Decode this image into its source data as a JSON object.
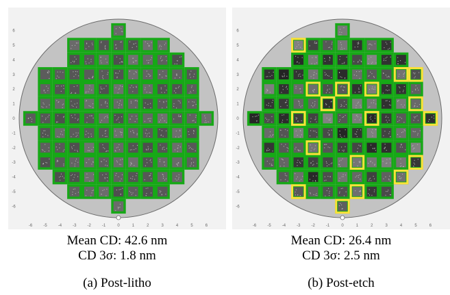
{
  "panels": [
    {
      "id": "a",
      "mean_cd": "Mean CD: 42.6 nm",
      "cd_3sigma": "CD 3σ: 1.8 nm",
      "caption": "(a) Post-litho",
      "shade_range": [
        0.3,
        0.45
      ],
      "highlighted_dies": []
    },
    {
      "id": "b",
      "mean_cd": "Mean CD: 26.4 nm",
      "cd_3sigma": "CD 3σ: 2.5 nm",
      "caption": "(b) Post-etch",
      "shade_range": [
        0.12,
        0.52
      ],
      "highlighted_dies": [
        [
          -3,
          5
        ],
        [
          4,
          3
        ],
        [
          5,
          3
        ],
        [
          -2,
          2
        ],
        [
          0,
          2
        ],
        [
          2,
          2
        ],
        [
          5,
          1
        ],
        [
          -1,
          1
        ],
        [
          -3,
          0
        ],
        [
          2,
          0
        ],
        [
          6,
          0
        ],
        [
          -2,
          -2
        ],
        [
          1,
          -3
        ],
        [
          5,
          -3
        ],
        [
          4,
          -4
        ],
        [
          -3,
          -5
        ],
        [
          1,
          -5
        ],
        [
          0,
          -6
        ]
      ]
    }
  ],
  "wafer_map": {
    "ticks": [
      -6,
      -5,
      -4,
      -3,
      -2,
      -1,
      0,
      1,
      2,
      3,
      4,
      5,
      6
    ],
    "die_rows": [
      {
        "y": 6,
        "x": [
          0,
          0
        ]
      },
      {
        "y": 5,
        "x": [
          -3,
          3
        ]
      },
      {
        "y": 4,
        "x": [
          -3,
          4
        ]
      },
      {
        "y": 3,
        "x": [
          -5,
          5
        ]
      },
      {
        "y": 2,
        "x": [
          -5,
          5
        ]
      },
      {
        "y": 1,
        "x": [
          -5,
          5
        ]
      },
      {
        "y": 0,
        "x": [
          -6,
          6
        ]
      },
      {
        "y": -1,
        "x": [
          -5,
          5
        ]
      },
      {
        "y": -2,
        "x": [
          -5,
          5
        ]
      },
      {
        "y": -3,
        "x": [
          -5,
          5
        ]
      },
      {
        "y": -4,
        "x": [
          -4,
          4
        ]
      },
      {
        "y": -5,
        "x": [
          -3,
          3
        ]
      },
      {
        "y": -6,
        "x": [
          0,
          0
        ]
      }
    ],
    "colors": {
      "background": "#f2f2f2",
      "wafer": "#c3c3c3",
      "die_border": "#17a817",
      "highlight_border": "#ffe23a"
    }
  }
}
